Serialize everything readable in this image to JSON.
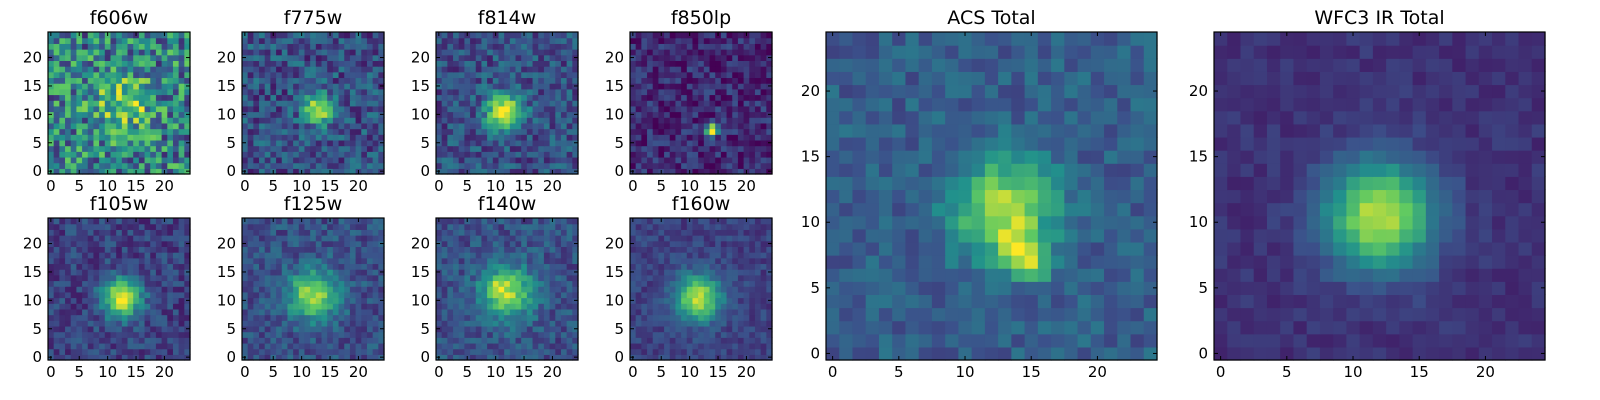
{
  "chart_data": {
    "type": "heatmap",
    "colormap": "viridis",
    "colors": [
      "#440154",
      "#3b528b",
      "#21918c",
      "#5ec962",
      "#fde725"
    ],
    "grid_size": 25,
    "panels": [
      {
        "id": "f606w",
        "title": "f606w",
        "xticks": [
          0,
          5,
          10,
          15,
          20
        ],
        "yticks": [
          0,
          5,
          10,
          15,
          20
        ],
        "xlim": [
          -0.5,
          24.5
        ],
        "ylim": [
          -0.5,
          24.5
        ],
        "peak": [
          12.5,
          12
        ],
        "sigma": 3.2,
        "amplitude": 0.35,
        "background": 0.45,
        "noise": 0.32,
        "extra_peaks": [
          [
            15,
            11,
            0.25
          ]
        ]
      },
      {
        "id": "f775w",
        "title": "f775w",
        "xticks": [
          0,
          5,
          10,
          15,
          20
        ],
        "yticks": [
          0,
          5,
          10,
          15,
          20
        ],
        "xlim": [
          -0.5,
          24.5
        ],
        "ylim": [
          -0.5,
          24.5
        ],
        "peak": [
          13,
          11
        ],
        "sigma": 1.8,
        "amplitude": 0.7,
        "background": 0.25,
        "noise": 0.18,
        "extra_peaks": []
      },
      {
        "id": "f814w",
        "title": "f814w",
        "xticks": [
          0,
          5,
          10,
          15,
          20
        ],
        "yticks": [
          0,
          5,
          10,
          15,
          20
        ],
        "xlim": [
          -0.5,
          24.5
        ],
        "ylim": [
          -0.5,
          24.5
        ],
        "peak": [
          11.5,
          10.5
        ],
        "sigma": 2.2,
        "amplitude": 0.75,
        "background": 0.25,
        "noise": 0.16,
        "extra_peaks": []
      },
      {
        "id": "f850lp",
        "title": "f850lp",
        "xticks": [
          0,
          5,
          10,
          15,
          20
        ],
        "yticks": [
          0,
          5,
          10,
          15,
          20
        ],
        "xlim": [
          -0.5,
          24.5
        ],
        "ylim": [
          -0.5,
          24.5
        ],
        "peak": [
          14,
          7.5
        ],
        "sigma": 0.8,
        "amplitude": 0.95,
        "background": 0.12,
        "noise": 0.14,
        "extra_peaks": []
      },
      {
        "id": "f105w",
        "title": "f105w",
        "xticks": [
          0,
          5,
          10,
          15,
          20
        ],
        "yticks": [
          0,
          5,
          10,
          15,
          20
        ],
        "xlim": [
          -0.5,
          24.5
        ],
        "ylim": [
          -0.5,
          24.5
        ],
        "peak": [
          12.5,
          10.5
        ],
        "sigma": 2.4,
        "amplitude": 0.75,
        "background": 0.2,
        "noise": 0.12,
        "extra_peaks": []
      },
      {
        "id": "f125w",
        "title": "f125w",
        "xticks": [
          0,
          5,
          10,
          15,
          20
        ],
        "yticks": [
          0,
          5,
          10,
          15,
          20
        ],
        "xlim": [
          -0.5,
          24.5
        ],
        "ylim": [
          -0.5,
          24.5
        ],
        "peak": [
          12,
          11
        ],
        "sigma": 3.0,
        "amplitude": 0.6,
        "background": 0.25,
        "noise": 0.12,
        "extra_peaks": []
      },
      {
        "id": "f140w",
        "title": "f140w",
        "xticks": [
          0,
          5,
          10,
          15,
          20
        ],
        "yticks": [
          0,
          5,
          10,
          15,
          20
        ],
        "xlim": [
          -0.5,
          24.5
        ],
        "ylim": [
          -0.5,
          24.5
        ],
        "peak": [
          12,
          11.5
        ],
        "sigma": 3.2,
        "amplitude": 0.6,
        "background": 0.25,
        "noise": 0.12,
        "extra_peaks": [
          [
            10.5,
            12.5,
            0.2
          ]
        ]
      },
      {
        "id": "f160w",
        "title": "f160w",
        "xticks": [
          0,
          5,
          10,
          15,
          20
        ],
        "yticks": [
          0,
          5,
          10,
          15,
          20
        ],
        "xlim": [
          -0.5,
          24.5
        ],
        "ylim": [
          -0.5,
          24.5
        ],
        "peak": [
          11.5,
          10.5
        ],
        "sigma": 2.8,
        "amplitude": 0.7,
        "background": 0.2,
        "noise": 0.08,
        "extra_peaks": []
      },
      {
        "id": "acs_total",
        "title": "ACS Total",
        "xticks": [
          0,
          5,
          10,
          15,
          20
        ],
        "yticks": [
          0,
          5,
          10,
          15,
          20
        ],
        "xlim": [
          -0.5,
          24.5
        ],
        "ylim": [
          -0.5,
          24.5
        ],
        "peak": [
          13,
          11
        ],
        "sigma": 2.6,
        "amplitude": 0.6,
        "background": 0.3,
        "noise": 0.1,
        "extra_peaks": [
          [
            14,
            8,
            0.35
          ],
          [
            15,
            7,
            0.4
          ]
        ]
      },
      {
        "id": "wfc3_ir_total",
        "title": "WFC3 IR Total",
        "xticks": [
          0,
          5,
          10,
          15,
          20
        ],
        "yticks": [
          0,
          5,
          10,
          15,
          20
        ],
        "xlim": [
          -0.5,
          24.5
        ],
        "ylim": [
          -0.5,
          24.5
        ],
        "peak": [
          12,
          10.5
        ],
        "sigma": 2.9,
        "amplitude": 0.75,
        "background": 0.15,
        "noise": 0.05,
        "extra_peaks": []
      }
    ]
  }
}
